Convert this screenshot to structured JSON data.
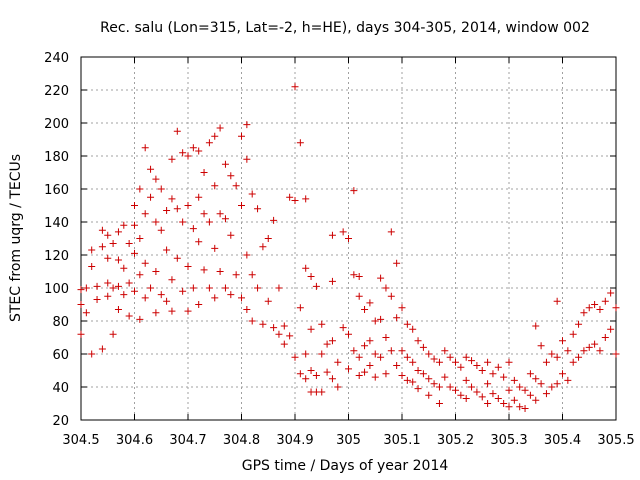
{
  "chart_data": {
    "type": "scatter",
    "title": "Rec. salu (Lon=315, Lat=-2, h=HE), days 304-305, 2014, window 002",
    "xlabel": "GPS time / Days of year 2014",
    "ylabel": "STEC from uqrg / TECUs",
    "xlim": [
      304.5,
      305.5
    ],
    "ylim": [
      20,
      240
    ],
    "xticks": [
      "304.5",
      "304.6",
      "304.7",
      "304.8",
      "304.9",
      "305",
      "305.1",
      "305.2",
      "305.3",
      "305.4",
      "305.5"
    ],
    "yticks": [
      "20",
      "40",
      "60",
      "80",
      "100",
      "120",
      "140",
      "160",
      "180",
      "200",
      "220",
      "240"
    ],
    "grid": true,
    "marker": "plus",
    "color": "#cc0000",
    "series": [
      {
        "name": "",
        "points": [
          [
            304.5,
            99
          ],
          [
            304.5,
            90
          ],
          [
            304.5,
            72
          ],
          [
            304.51,
            100
          ],
          [
            304.51,
            85
          ],
          [
            304.52,
            113
          ],
          [
            304.52,
            60
          ],
          [
            304.52,
            123
          ],
          [
            304.53,
            101
          ],
          [
            304.53,
            93
          ],
          [
            304.54,
            135
          ],
          [
            304.54,
            125
          ],
          [
            304.54,
            63
          ],
          [
            304.55,
            132
          ],
          [
            304.55,
            118
          ],
          [
            304.55,
            103
          ],
          [
            304.55,
            95
          ],
          [
            304.56,
            127
          ],
          [
            304.56,
            100
          ],
          [
            304.56,
            72
          ],
          [
            304.57,
            134
          ],
          [
            304.57,
            117
          ],
          [
            304.57,
            101
          ],
          [
            304.57,
            87
          ],
          [
            304.58,
            138
          ],
          [
            304.58,
            112
          ],
          [
            304.58,
            96
          ],
          [
            304.59,
            127
          ],
          [
            304.59,
            103
          ],
          [
            304.59,
            83
          ],
          [
            304.6,
            150
          ],
          [
            304.6,
            138
          ],
          [
            304.6,
            121
          ],
          [
            304.6,
            98
          ],
          [
            304.61,
            160
          ],
          [
            304.61,
            130
          ],
          [
            304.61,
            108
          ],
          [
            304.61,
            81
          ],
          [
            304.62,
            185
          ],
          [
            304.62,
            145
          ],
          [
            304.62,
            115
          ],
          [
            304.62,
            94
          ],
          [
            304.63,
            172
          ],
          [
            304.63,
            155
          ],
          [
            304.63,
            100
          ],
          [
            304.64,
            166
          ],
          [
            304.64,
            140
          ],
          [
            304.64,
            110
          ],
          [
            304.64,
            85
          ],
          [
            304.65,
            160
          ],
          [
            304.65,
            135
          ],
          [
            304.65,
            96
          ],
          [
            304.66,
            147
          ],
          [
            304.66,
            123
          ],
          [
            304.66,
            92
          ],
          [
            304.67,
            178
          ],
          [
            304.67,
            154
          ],
          [
            304.67,
            105
          ],
          [
            304.67,
            86
          ],
          [
            304.68,
            195
          ],
          [
            304.68,
            148
          ],
          [
            304.68,
            118
          ],
          [
            304.69,
            182
          ],
          [
            304.69,
            140
          ],
          [
            304.69,
            98
          ],
          [
            304.7,
            180
          ],
          [
            304.7,
            150
          ],
          [
            304.7,
            113
          ],
          [
            304.7,
            86
          ],
          [
            304.71,
            185
          ],
          [
            304.71,
            136
          ],
          [
            304.71,
            100
          ],
          [
            304.72,
            183
          ],
          [
            304.72,
            155
          ],
          [
            304.72,
            128
          ],
          [
            304.72,
            90
          ],
          [
            304.73,
            170
          ],
          [
            304.73,
            145
          ],
          [
            304.73,
            111
          ],
          [
            304.74,
            188
          ],
          [
            304.74,
            140
          ],
          [
            304.74,
            100
          ],
          [
            304.75,
            192
          ],
          [
            304.75,
            162
          ],
          [
            304.75,
            124
          ],
          [
            304.75,
            94
          ],
          [
            304.76,
            197
          ],
          [
            304.76,
            145
          ],
          [
            304.76,
            110
          ],
          [
            304.77,
            175
          ],
          [
            304.77,
            142
          ],
          [
            304.77,
            100
          ],
          [
            304.78,
            168
          ],
          [
            304.78,
            132
          ],
          [
            304.78,
            96
          ],
          [
            304.79,
            162
          ],
          [
            304.79,
            108
          ],
          [
            304.8,
            192
          ],
          [
            304.8,
            150
          ],
          [
            304.8,
            94
          ],
          [
            304.81,
            199
          ],
          [
            304.81,
            178
          ],
          [
            304.81,
            120
          ],
          [
            304.81,
            87
          ],
          [
            304.82,
            157
          ],
          [
            304.82,
            108
          ],
          [
            304.82,
            80
          ],
          [
            304.83,
            148
          ],
          [
            304.83,
            100
          ],
          [
            304.84,
            125
          ],
          [
            304.84,
            78
          ],
          [
            304.85,
            130
          ],
          [
            304.85,
            92
          ],
          [
            304.86,
            141
          ],
          [
            304.86,
            76
          ],
          [
            304.87,
            100
          ],
          [
            304.87,
            72
          ],
          [
            304.88,
            77
          ],
          [
            304.88,
            66
          ],
          [
            304.89,
            155
          ],
          [
            304.89,
            71
          ],
          [
            304.9,
            222
          ],
          [
            304.9,
            153
          ],
          [
            304.9,
            58
          ],
          [
            304.91,
            188
          ],
          [
            304.91,
            88
          ],
          [
            304.91,
            48
          ],
          [
            304.92,
            154
          ],
          [
            304.92,
            112
          ],
          [
            304.92,
            60
          ],
          [
            304.92,
            45
          ],
          [
            304.93,
            107
          ],
          [
            304.93,
            75
          ],
          [
            304.93,
            50
          ],
          [
            304.93,
            37
          ],
          [
            304.94,
            101
          ],
          [
            304.94,
            47
          ],
          [
            304.94,
            37
          ],
          [
            304.95,
            78
          ],
          [
            304.95,
            60
          ],
          [
            304.95,
            37
          ],
          [
            304.96,
            66
          ],
          [
            304.96,
            49
          ],
          [
            304.97,
            132
          ],
          [
            304.97,
            104
          ],
          [
            304.97,
            68
          ],
          [
            304.97,
            45
          ],
          [
            304.98,
            55
          ],
          [
            304.98,
            40
          ],
          [
            304.99,
            134
          ],
          [
            304.99,
            76
          ],
          [
            305.0,
            130
          ],
          [
            305.0,
            72
          ],
          [
            305.0,
            51
          ],
          [
            305.01,
            159
          ],
          [
            305.01,
            108
          ],
          [
            305.01,
            62
          ],
          [
            305.02,
            107
          ],
          [
            305.02,
            95
          ],
          [
            305.02,
            58
          ],
          [
            305.02,
            47
          ],
          [
            305.03,
            87
          ],
          [
            305.03,
            65
          ],
          [
            305.03,
            49
          ],
          [
            305.04,
            91
          ],
          [
            305.04,
            68
          ],
          [
            305.04,
            53
          ],
          [
            305.05,
            80
          ],
          [
            305.05,
            60
          ],
          [
            305.05,
            46
          ],
          [
            305.06,
            106
          ],
          [
            305.06,
            81
          ],
          [
            305.06,
            58
          ],
          [
            305.07,
            100
          ],
          [
            305.07,
            70
          ],
          [
            305.07,
            48
          ],
          [
            305.08,
            134
          ],
          [
            305.08,
            95
          ],
          [
            305.08,
            62
          ],
          [
            305.09,
            115
          ],
          [
            305.09,
            82
          ],
          [
            305.09,
            53
          ],
          [
            305.1,
            88
          ],
          [
            305.1,
            62
          ],
          [
            305.1,
            47
          ],
          [
            305.11,
            78
          ],
          [
            305.11,
            58
          ],
          [
            305.11,
            44
          ],
          [
            305.12,
            75
          ],
          [
            305.12,
            55
          ],
          [
            305.12,
            43
          ],
          [
            305.13,
            68
          ],
          [
            305.13,
            50
          ],
          [
            305.13,
            39
          ],
          [
            305.14,
            64
          ],
          [
            305.14,
            48
          ],
          [
            305.15,
            60
          ],
          [
            305.15,
            45
          ],
          [
            305.15,
            35
          ],
          [
            305.16,
            57
          ],
          [
            305.16,
            42
          ],
          [
            305.17,
            55
          ],
          [
            305.17,
            40
          ],
          [
            305.17,
            30
          ],
          [
            305.18,
            62
          ],
          [
            305.18,
            46
          ],
          [
            305.19,
            58
          ],
          [
            305.19,
            40
          ],
          [
            305.2,
            55
          ],
          [
            305.2,
            38
          ],
          [
            305.21,
            52
          ],
          [
            305.21,
            35
          ],
          [
            305.22,
            58
          ],
          [
            305.22,
            44
          ],
          [
            305.22,
            33
          ],
          [
            305.23,
            56
          ],
          [
            305.23,
            40
          ],
          [
            305.24,
            53
          ],
          [
            305.24,
            37
          ],
          [
            305.25,
            50
          ],
          [
            305.25,
            34
          ],
          [
            305.26,
            55
          ],
          [
            305.26,
            42
          ],
          [
            305.26,
            30
          ],
          [
            305.27,
            48
          ],
          [
            305.27,
            36
          ],
          [
            305.28,
            52
          ],
          [
            305.28,
            33
          ],
          [
            305.29,
            46
          ],
          [
            305.29,
            30
          ],
          [
            305.3,
            55
          ],
          [
            305.3,
            38
          ],
          [
            305.3,
            28
          ],
          [
            305.31,
            44
          ],
          [
            305.31,
            32
          ],
          [
            305.32,
            40
          ],
          [
            305.32,
            28
          ],
          [
            305.33,
            38
          ],
          [
            305.33,
            27
          ],
          [
            305.34,
            48
          ],
          [
            305.34,
            35
          ],
          [
            305.35,
            77
          ],
          [
            305.35,
            45
          ],
          [
            305.35,
            32
          ],
          [
            305.36,
            65
          ],
          [
            305.36,
            42
          ],
          [
            305.37,
            55
          ],
          [
            305.37,
            36
          ],
          [
            305.38,
            60
          ],
          [
            305.38,
            40
          ],
          [
            305.39,
            92
          ],
          [
            305.39,
            58
          ],
          [
            305.39,
            42
          ],
          [
            305.4,
            68
          ],
          [
            305.4,
            48
          ],
          [
            305.41,
            62
          ],
          [
            305.41,
            44
          ],
          [
            305.42,
            72
          ],
          [
            305.42,
            55
          ],
          [
            305.43,
            78
          ],
          [
            305.43,
            58
          ],
          [
            305.44,
            85
          ],
          [
            305.44,
            62
          ],
          [
            305.45,
            88
          ],
          [
            305.45,
            64
          ],
          [
            305.46,
            90
          ],
          [
            305.46,
            66
          ],
          [
            305.47,
            87
          ],
          [
            305.47,
            62
          ],
          [
            305.48,
            92
          ],
          [
            305.48,
            70
          ],
          [
            305.49,
            97
          ],
          [
            305.49,
            75
          ],
          [
            305.5,
            88
          ],
          [
            305.5,
            60
          ]
        ]
      }
    ]
  }
}
